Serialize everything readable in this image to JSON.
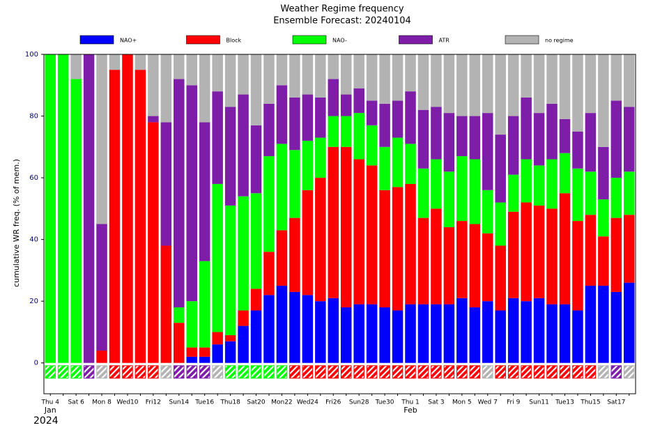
{
  "chart_data": {
    "type": "stacked_bar",
    "title": "Weather Regime frequency",
    "subtitle": "Ensemble Forecast: 20240104",
    "y_label": "cumulative WR freq. (% of mem.)",
    "categories": [
      "Thu 4",
      null,
      "Sat 6",
      null,
      "Mon 8",
      null,
      "Wed10",
      null,
      "Fri12",
      null,
      "Sun14",
      null,
      "Tue16",
      null,
      "Thu18",
      null,
      "Sat20",
      null,
      "Mon22",
      null,
      "Wed24",
      null,
      "Fri26",
      null,
      "Sun28",
      null,
      "Tue30",
      null,
      "Thu 1",
      null,
      "Sat 3",
      null,
      "Mon 5",
      null,
      "Wed 7",
      null,
      "Fri 9",
      null,
      "Sun11",
      null,
      "Tue13",
      null,
      "Thu15",
      null,
      "Sat17",
      null
    ],
    "tick_label_colors": [
      "#000000",
      null,
      "#000000",
      null,
      "#000000",
      null,
      "#000000",
      null,
      "#000000",
      null,
      "#e00000",
      null,
      "#000000",
      null,
      "#000000",
      null,
      "#000000",
      null,
      "#000000",
      null,
      "#000000",
      null,
      "#000000",
      null,
      "#e00000",
      null,
      "#000000",
      null,
      "#000000",
      null,
      "#000000",
      null,
      "#000000",
      null,
      "#000000",
      null,
      "#000000",
      null,
      "#e00000",
      null,
      "#000000",
      null,
      "#000000",
      null,
      "#000000",
      null
    ],
    "month_labels": [
      {
        "index": 0,
        "label": "Jan"
      },
      {
        "index": 28,
        "label": "Feb"
      }
    ],
    "year_label": "2024",
    "series": [
      {
        "name": "NAO+",
        "color": "#0000ff",
        "values": [
          0,
          0,
          0,
          0,
          0,
          0,
          0,
          0,
          0,
          0,
          0,
          2,
          2,
          6,
          7,
          12,
          17,
          22,
          25,
          23,
          22,
          20,
          21,
          18,
          19,
          19,
          18,
          17,
          19,
          19,
          19,
          19,
          21,
          18,
          20,
          17,
          21,
          20,
          21,
          19,
          19,
          17,
          25,
          25,
          23,
          26
        ]
      },
      {
        "name": "Block",
        "color": "#ff0000",
        "values": [
          0,
          0,
          0,
          0,
          4,
          95,
          100,
          95,
          78,
          38,
          13,
          3,
          3,
          4,
          2,
          5,
          7,
          14,
          18,
          24,
          34,
          40,
          49,
          52,
          47,
          45,
          38,
          40,
          39,
          28,
          31,
          25,
          25,
          27,
          22,
          21,
          28,
          32,
          30,
          31,
          36,
          29,
          23,
          16,
          24,
          22
        ]
      },
      {
        "name": "NAO-",
        "color": "#00ff00",
        "values": [
          100,
          100,
          92,
          0,
          0,
          0,
          0,
          0,
          0,
          0,
          5,
          15,
          28,
          48,
          42,
          37,
          31,
          31,
          28,
          22,
          16,
          13,
          10,
          10,
          15,
          13,
          14,
          16,
          13,
          16,
          16,
          18,
          21,
          21,
          14,
          14,
          12,
          14,
          13,
          16,
          13,
          17,
          14,
          12,
          13,
          14
        ]
      },
      {
        "name": "ATR",
        "color": "#7e1ea8",
        "values": [
          0,
          0,
          0,
          100,
          41,
          0,
          0,
          0,
          2,
          40,
          74,
          70,
          45,
          30,
          32,
          33,
          22,
          17,
          19,
          17,
          15,
          13,
          12,
          7,
          8,
          8,
          14,
          12,
          17,
          19,
          17,
          19,
          13,
          14,
          25,
          22,
          19,
          20,
          17,
          18,
          11,
          12,
          19,
          17,
          25,
          21
        ]
      },
      {
        "name": "no regime",
        "color": "#b3b3b3",
        "values": [
          0,
          0,
          8,
          0,
          55,
          5,
          0,
          5,
          20,
          22,
          8,
          10,
          22,
          12,
          17,
          13,
          23,
          16,
          10,
          14,
          13,
          14,
          8,
          13,
          11,
          15,
          16,
          15,
          12,
          18,
          17,
          19,
          20,
          20,
          19,
          26,
          20,
          14,
          19,
          16,
          21,
          25,
          19,
          30,
          15,
          17
        ]
      }
    ],
    "dominant": [
      "NAO-",
      "NAO-",
      "NAO-",
      "ATR",
      "no regime",
      "Block",
      "Block",
      "Block",
      "Block",
      "no regime",
      "ATR",
      "ATR",
      "ATR",
      "no regime",
      "NAO-",
      "NAO-",
      "NAO-",
      "NAO-",
      "NAO-",
      "Block",
      "Block",
      "Block",
      "Block",
      "Block",
      "Block",
      "Block",
      "Block",
      "Block",
      "Block",
      "Block",
      "Block",
      "Block",
      "Block",
      "Block",
      "no regime",
      "Block",
      "Block",
      "Block",
      "Block",
      "Block",
      "Block",
      "Block",
      "Block",
      "no regime",
      "ATR",
      "no regime"
    ],
    "ylim": [
      -10,
      100
    ],
    "yticks": [
      0,
      20,
      40,
      60,
      80,
      100
    ],
    "grid": false
  }
}
